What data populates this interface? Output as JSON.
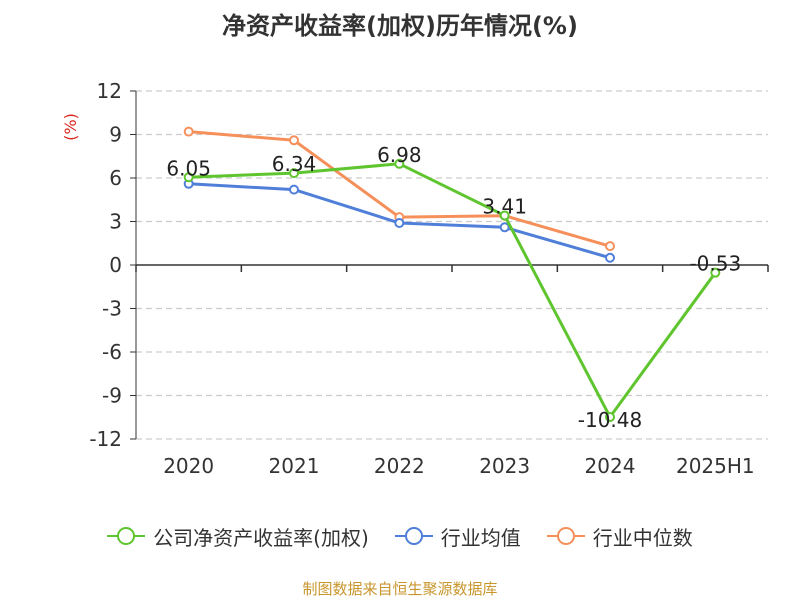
{
  "title": "净资产收益率(加权)历年情况(%)",
  "source": "制图数据来自恒生聚源数据库",
  "colors": {
    "company": "#5fc52e",
    "avg": "#4f7fd8",
    "median": "#f5905b",
    "unit": "#d9281f",
    "source": "#c8962d",
    "grid": "#cccccc",
    "axis": "#333333"
  },
  "chart_data": {
    "type": "line",
    "x": [
      "2020",
      "2021",
      "2022",
      "2023",
      "2024",
      "2025H1"
    ],
    "yunit": "(%)",
    "ylim": [
      -12,
      12
    ],
    "yticks": [
      "12",
      "9",
      "6",
      "3",
      "0",
      "-3",
      "-6",
      "-9",
      "-12"
    ],
    "grid": true,
    "legend_position": "bottom",
    "series": [
      {
        "name": "公司净资产收益率(加权)",
        "values": [
          6.05,
          6.34,
          6.98,
          3.41,
          -10.48,
          -0.53
        ],
        "labels": [
          "6.05",
          "6.34",
          "6.98",
          "3.41",
          "-10.48",
          "-0.53"
        ]
      },
      {
        "name": "行业均值",
        "values": [
          5.6,
          5.2,
          2.9,
          2.6,
          0.5,
          null
        ]
      },
      {
        "name": "行业中位数",
        "values": [
          9.2,
          8.6,
          3.3,
          3.4,
          1.3,
          null
        ]
      }
    ]
  }
}
